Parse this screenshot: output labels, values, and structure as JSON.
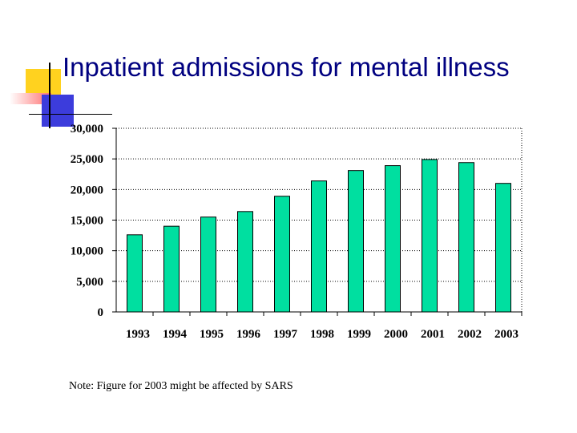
{
  "slide": {
    "title": "Inpatient admissions for mental illness",
    "note": "Note: Figure for 2003 might be affected by SARS",
    "colors": {
      "title": "#000080",
      "bar": "#00DFA0",
      "deco_yellow": "#FFD21F",
      "deco_pink": "#FF6F6F",
      "deco_blue": "#3C3CDC"
    }
  },
  "chart_data": {
    "type": "bar",
    "categories": [
      "1993",
      "1994",
      "1995",
      "1996",
      "1997",
      "1998",
      "1999",
      "2000",
      "2001",
      "2002",
      "2003"
    ],
    "values": [
      12600,
      14000,
      15500,
      16400,
      18900,
      21400,
      23100,
      23900,
      24900,
      24400,
      21000
    ],
    "y_ticks": [
      "0",
      "5,000",
      "10,000",
      "15,000",
      "20,000",
      "25,000",
      "30,000"
    ],
    "ylim": [
      0,
      30000
    ],
    "grid": "dotted-horizontal",
    "bar_color": "#00DFA0"
  }
}
